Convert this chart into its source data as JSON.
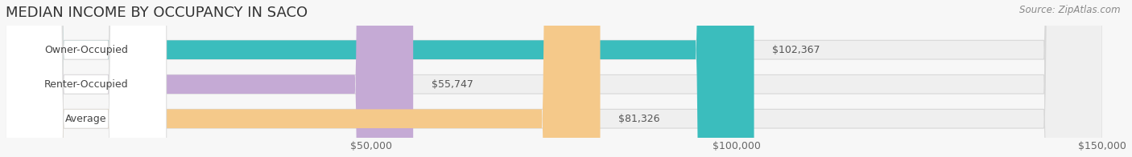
{
  "title": "MEDIAN INCOME BY OCCUPANCY IN SACO",
  "source": "Source: ZipAtlas.com",
  "categories": [
    "Owner-Occupied",
    "Renter-Occupied",
    "Average"
  ],
  "values": [
    102367,
    55747,
    81326
  ],
  "labels": [
    "$102,367",
    "$55,747",
    "$81,326"
  ],
  "bar_colors": [
    "#3bbdbd",
    "#c5aad5",
    "#f5c98a"
  ],
  "bar_bg_color": "#efefef",
  "bar_outline_color": "#d8d8d8",
  "label_bg_color": "#ffffff",
  "xlim": [
    0,
    150000
  ],
  "xticks": [
    50000,
    100000,
    150000
  ],
  "xtick_labels": [
    "$50,000",
    "$100,000",
    "$150,000"
  ],
  "background_color": "#f7f7f7",
  "title_fontsize": 13,
  "source_fontsize": 8.5,
  "label_fontsize": 9,
  "tick_fontsize": 9
}
